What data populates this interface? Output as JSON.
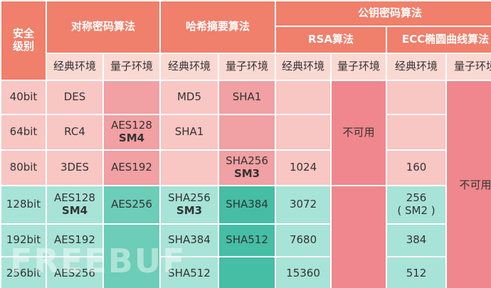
{
  "header": {
    "level": "安全\n级别",
    "symmetric": "对称密码算法",
    "hash": "哈希摘要算法",
    "public_key": "公钥密码算法",
    "rsa": "RSA算法",
    "ecc": "ECC椭圆曲线算法",
    "classic": "经典环境",
    "quantum": "量子环境"
  },
  "unavailable_label": "不可用",
  "rows": [
    {
      "level": "40bit",
      "sym_classic": "DES",
      "sym_classic2": "",
      "sym_quantum": "",
      "sym_quantum2": "",
      "hash_classic": "MD5",
      "hash_classic2": "",
      "hash_quantum": "SHA1",
      "hash_quantum2": "",
      "rsa_classic": "",
      "ecc_classic": "",
      "ecc_classic2": ""
    },
    {
      "level": "64bit",
      "sym_classic": "RC4",
      "sym_classic2": "",
      "sym_quantum": "AES128",
      "sym_quantum2": "SM4",
      "hash_classic": "SHA1",
      "hash_classic2": "",
      "hash_quantum": "",
      "hash_quantum2": "",
      "rsa_classic": "",
      "ecc_classic": "",
      "ecc_classic2": ""
    },
    {
      "level": "80bit",
      "sym_classic": "3DES",
      "sym_classic2": "",
      "sym_quantum": "AES192",
      "sym_quantum2": "",
      "hash_classic": "",
      "hash_classic2": "",
      "hash_quantum": "SHA256",
      "hash_quantum2": "SM3",
      "rsa_classic": "1024",
      "ecc_classic": "160",
      "ecc_classic2": ""
    },
    {
      "level": "128bit",
      "sym_classic": "AES128",
      "sym_classic2": "SM4",
      "sym_quantum": "AES256",
      "sym_quantum2": "",
      "hash_classic": "SHA256",
      "hash_classic2": "SM3",
      "hash_quantum": "SHA384",
      "hash_quantum2": "",
      "rsa_classic": "3072",
      "ecc_classic": "256",
      "ecc_classic2": "( SM2 )"
    },
    {
      "level": "192bit",
      "sym_classic": "AES192",
      "sym_classic2": "",
      "sym_quantum": "",
      "sym_quantum2": "",
      "hash_classic": "SHA384",
      "hash_classic2": "",
      "hash_quantum": "SHA512",
      "hash_quantum2": "",
      "rsa_classic": "7680",
      "ecc_classic": "384",
      "ecc_classic2": ""
    },
    {
      "level": "256bit",
      "sym_classic": "AES256",
      "sym_classic2": "",
      "sym_quantum": "",
      "sym_quantum2": "",
      "hash_classic": "SHA512",
      "hash_classic2": "",
      "hash_quantum": "",
      "hash_quantum2": "",
      "rsa_classic": "15360",
      "ecc_classic": "512",
      "ecc_classic2": ""
    }
  ],
  "watermark": "FREEBUF",
  "colors": {
    "header": "#f07f6b",
    "env_header": "#fbd9d3",
    "pink_light": "#f8c6c3",
    "pink_medium": "#f1a0a3",
    "pink_strong": "#f0878e",
    "green_light": "#a7e3d6",
    "green_medium": "#6ccdb8",
    "green_dark": "#45bea5"
  }
}
